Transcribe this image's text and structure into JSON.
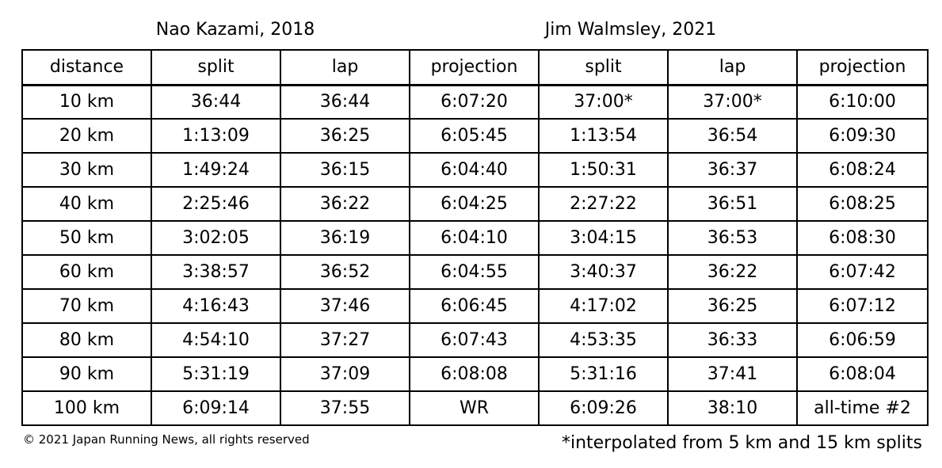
{
  "runners": [
    {
      "name": "Nao Kazami, 2018"
    },
    {
      "name": "Jim Walmsley, 2021"
    }
  ],
  "columns": [
    "distance",
    "split",
    "lap",
    "projection",
    "split",
    "lap",
    "projection"
  ],
  "rows": [
    [
      "10 km",
      "36:44",
      "36:44",
      "6:07:20",
      "37:00*",
      "37:00*",
      "6:10:00"
    ],
    [
      "20 km",
      "1:13:09",
      "36:25",
      "6:05:45",
      "1:13:54",
      "36:54",
      "6:09:30"
    ],
    [
      "30 km",
      "1:49:24",
      "36:15",
      "6:04:40",
      "1:50:31",
      "36:37",
      "6:08:24"
    ],
    [
      "40 km",
      "2:25:46",
      "36:22",
      "6:04:25",
      "2:27:22",
      "36:51",
      "6:08:25"
    ],
    [
      "50 km",
      "3:02:05",
      "36:19",
      "6:04:10",
      "3:04:15",
      "36:53",
      "6:08:30"
    ],
    [
      "60 km",
      "3:38:57",
      "36:52",
      "6:04:55",
      "3:40:37",
      "36:22",
      "6:07:42"
    ],
    [
      "70 km",
      "4:16:43",
      "37:46",
      "6:06:45",
      "4:17:02",
      "36:25",
      "6:07:12"
    ],
    [
      "80 km",
      "4:54:10",
      "37:27",
      "6:07:43",
      "4:53:35",
      "36:33",
      "6:06:59"
    ],
    [
      "90 km",
      "5:31:19",
      "37:09",
      "6:08:08",
      "5:31:16",
      "37:41",
      "6:08:04"
    ],
    [
      "100 km",
      "6:09:14",
      "37:55",
      "WR",
      "6:09:26",
      "38:10",
      "all-time #2"
    ]
  ],
  "copyright": "© 2021 Japan Running News, all rights reserved",
  "footnote": "*interpolated from 5 km and 15 km splits"
}
